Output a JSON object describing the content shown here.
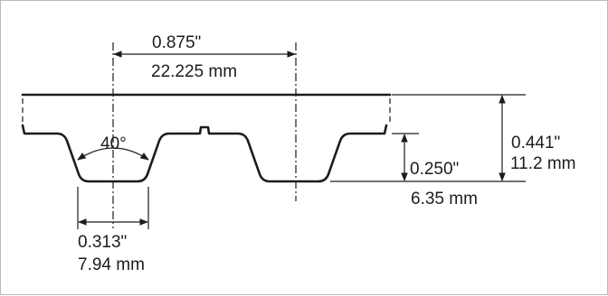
{
  "diagram": {
    "pitch_in": "0.875\"",
    "pitch_mm": "22.225 mm",
    "tooth_angle": "40°",
    "tooth_height_in": "0.250\"",
    "tooth_height_mm": "6.35 mm",
    "total_height_in": "0.441\"",
    "total_height_mm": "11.2 mm",
    "tooth_width_in": "0.313\"",
    "tooth_width_mm": "7.94 mm"
  }
}
